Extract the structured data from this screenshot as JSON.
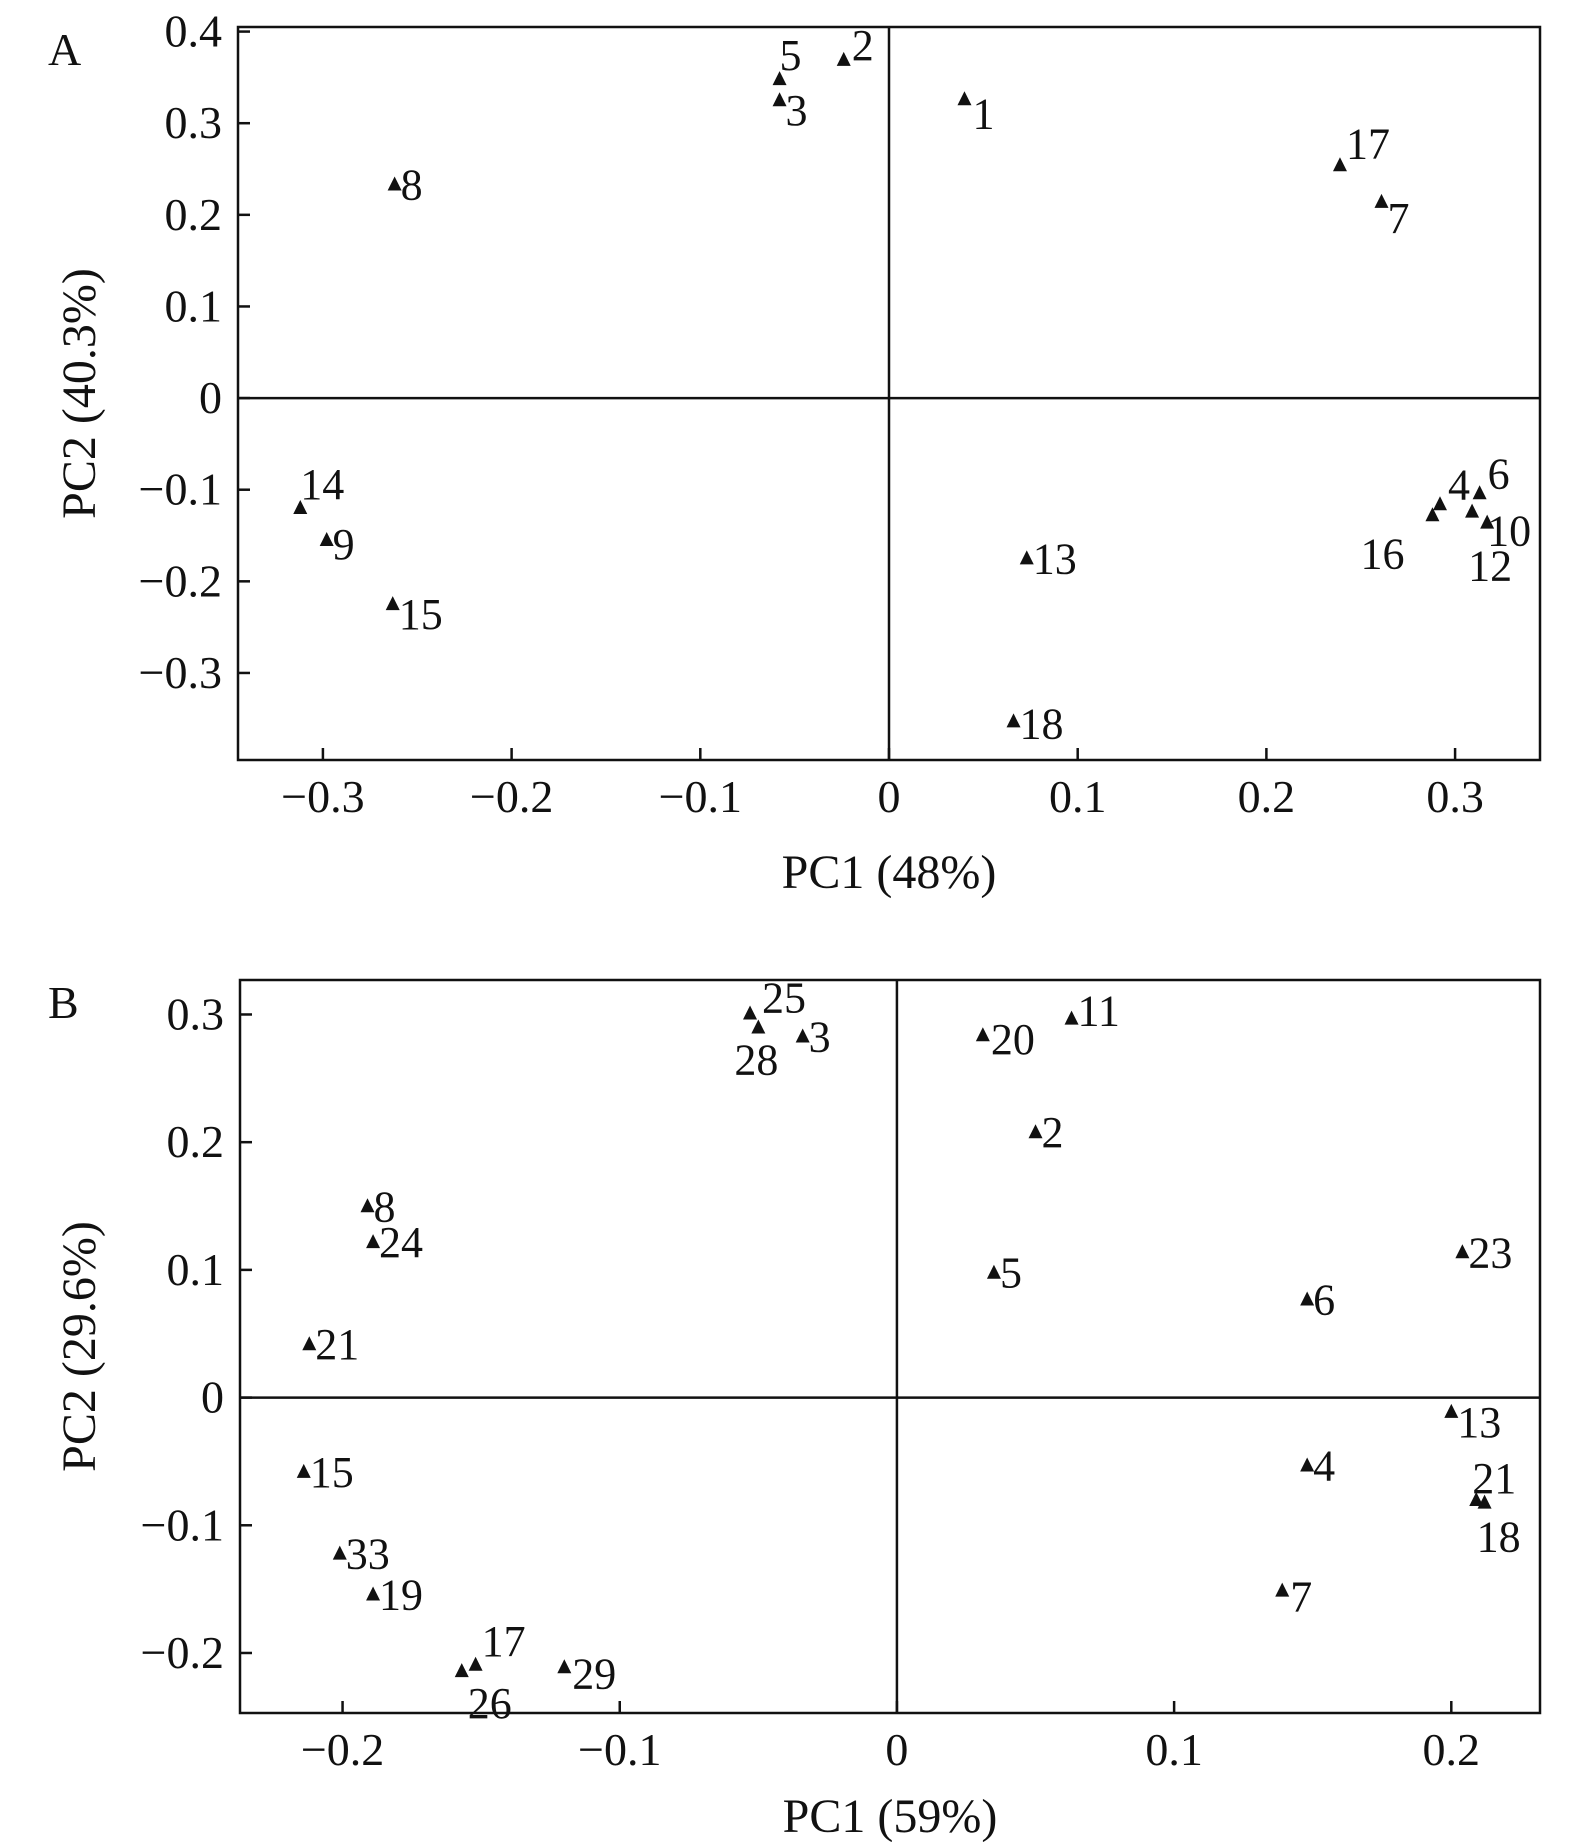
{
  "chart_data": [
    {
      "type": "scatter",
      "panel_label": "A",
      "xlabel": "PC1 (48%)",
      "ylabel": "PC2 (40.3%)",
      "xlim": [
        -0.345,
        0.345
      ],
      "ylim": [
        -0.395,
        0.405
      ],
      "xticks": [
        -0.3,
        -0.2,
        -0.1,
        0,
        0.1,
        0.2,
        0.3
      ],
      "xtick_labels": [
        "−0.3",
        "−0.2",
        "−0.1",
        "0",
        "0.1",
        "0.2",
        "0.3"
      ],
      "yticks": [
        -0.3,
        -0.2,
        -0.1,
        0,
        0.1,
        0.2,
        0.3,
        0.4
      ],
      "ytick_labels": [
        "−0.3",
        "−0.2",
        "−0.1",
        "0",
        "0.1",
        "0.2",
        "0.3",
        "0.4"
      ],
      "grid": false,
      "marker": "triangle",
      "points": [
        {
          "label": "1",
          "x": 0.04,
          "y": 0.325
        },
        {
          "label": "2",
          "x": -0.024,
          "y": 0.368
        },
        {
          "label": "3",
          "x": -0.058,
          "y": 0.324
        },
        {
          "label": "4",
          "x": 0.292,
          "y": -0.117
        },
        {
          "label": "5",
          "x": -0.058,
          "y": 0.347
        },
        {
          "label": "6",
          "x": 0.313,
          "y": -0.105
        },
        {
          "label": "7",
          "x": 0.261,
          "y": 0.213
        },
        {
          "label": "8",
          "x": -0.262,
          "y": 0.232
        },
        {
          "label": "9",
          "x": -0.298,
          "y": -0.156
        },
        {
          "label": "10",
          "x": 0.317,
          "y": -0.137
        },
        {
          "label": "12",
          "x": 0.309,
          "y": -0.125
        },
        {
          "label": "13",
          "x": 0.073,
          "y": -0.176
        },
        {
          "label": "14",
          "x": -0.312,
          "y": -0.121
        },
        {
          "label": "15",
          "x": -0.263,
          "y": -0.226
        },
        {
          "label": "16",
          "x": 0.288,
          "y": -0.129
        },
        {
          "label": "17",
          "x": 0.239,
          "y": 0.253
        },
        {
          "label": "18",
          "x": 0.066,
          "y": -0.354
        }
      ]
    },
    {
      "type": "scatter",
      "panel_label": "B",
      "xlabel": "PC1 (59%)",
      "ylabel": "PC2 (29.6%)",
      "xlim": [
        -0.237,
        0.232
      ],
      "ylim": [
        -0.247,
        0.327
      ],
      "xticks": [
        -0.2,
        -0.1,
        0,
        0.1,
        0.2
      ],
      "xtick_labels": [
        "−0.2",
        "−0.1",
        "0",
        "0.1",
        "0.2"
      ],
      "yticks": [
        -0.2,
        -0.1,
        0,
        0.1,
        0.2,
        0.3
      ],
      "ytick_labels": [
        "−0.2",
        "−0.1",
        "0",
        "0.1",
        "0.2",
        "0.3"
      ],
      "grid": false,
      "marker": "triangle",
      "points": [
        {
          "label": "25",
          "x": -0.053,
          "y": 0.3
        },
        {
          "label": "28",
          "x": -0.05,
          "y": 0.289
        },
        {
          "label": "3",
          "x": -0.034,
          "y": 0.282
        },
        {
          "label": "20",
          "x": 0.031,
          "y": 0.283
        },
        {
          "label": "11",
          "x": 0.063,
          "y": 0.296
        },
        {
          "label": "2",
          "x": 0.05,
          "y": 0.207
        },
        {
          "label": "8",
          "x": -0.191,
          "y": 0.149
        },
        {
          "label": "24",
          "x": -0.189,
          "y": 0.121
        },
        {
          "label": "21",
          "x": -0.212,
          "y": 0.041
        },
        {
          "label": "5",
          "x": 0.035,
          "y": 0.097
        },
        {
          "label": "6",
          "x": 0.148,
          "y": 0.076
        },
        {
          "label": "23",
          "x": 0.204,
          "y": 0.113
        },
        {
          "label": "13",
          "x": 0.2,
          "y": -0.012
        },
        {
          "label": "4",
          "x": 0.148,
          "y": -0.054
        },
        {
          "label": "21",
          "x": 0.209,
          "y": -0.081
        },
        {
          "label": "18",
          "x": 0.212,
          "y": -0.083
        },
        {
          "label": "7",
          "x": 0.139,
          "y": -0.152
        },
        {
          "label": "15",
          "x": -0.214,
          "y": -0.059
        },
        {
          "label": "33",
          "x": -0.201,
          "y": -0.123
        },
        {
          "label": "19",
          "x": -0.189,
          "y": -0.155
        },
        {
          "label": "17",
          "x": -0.152,
          "y": -0.21
        },
        {
          "label": "26",
          "x": -0.157,
          "y": -0.215
        },
        {
          "label": "29",
          "x": -0.12,
          "y": -0.212
        }
      ]
    }
  ]
}
